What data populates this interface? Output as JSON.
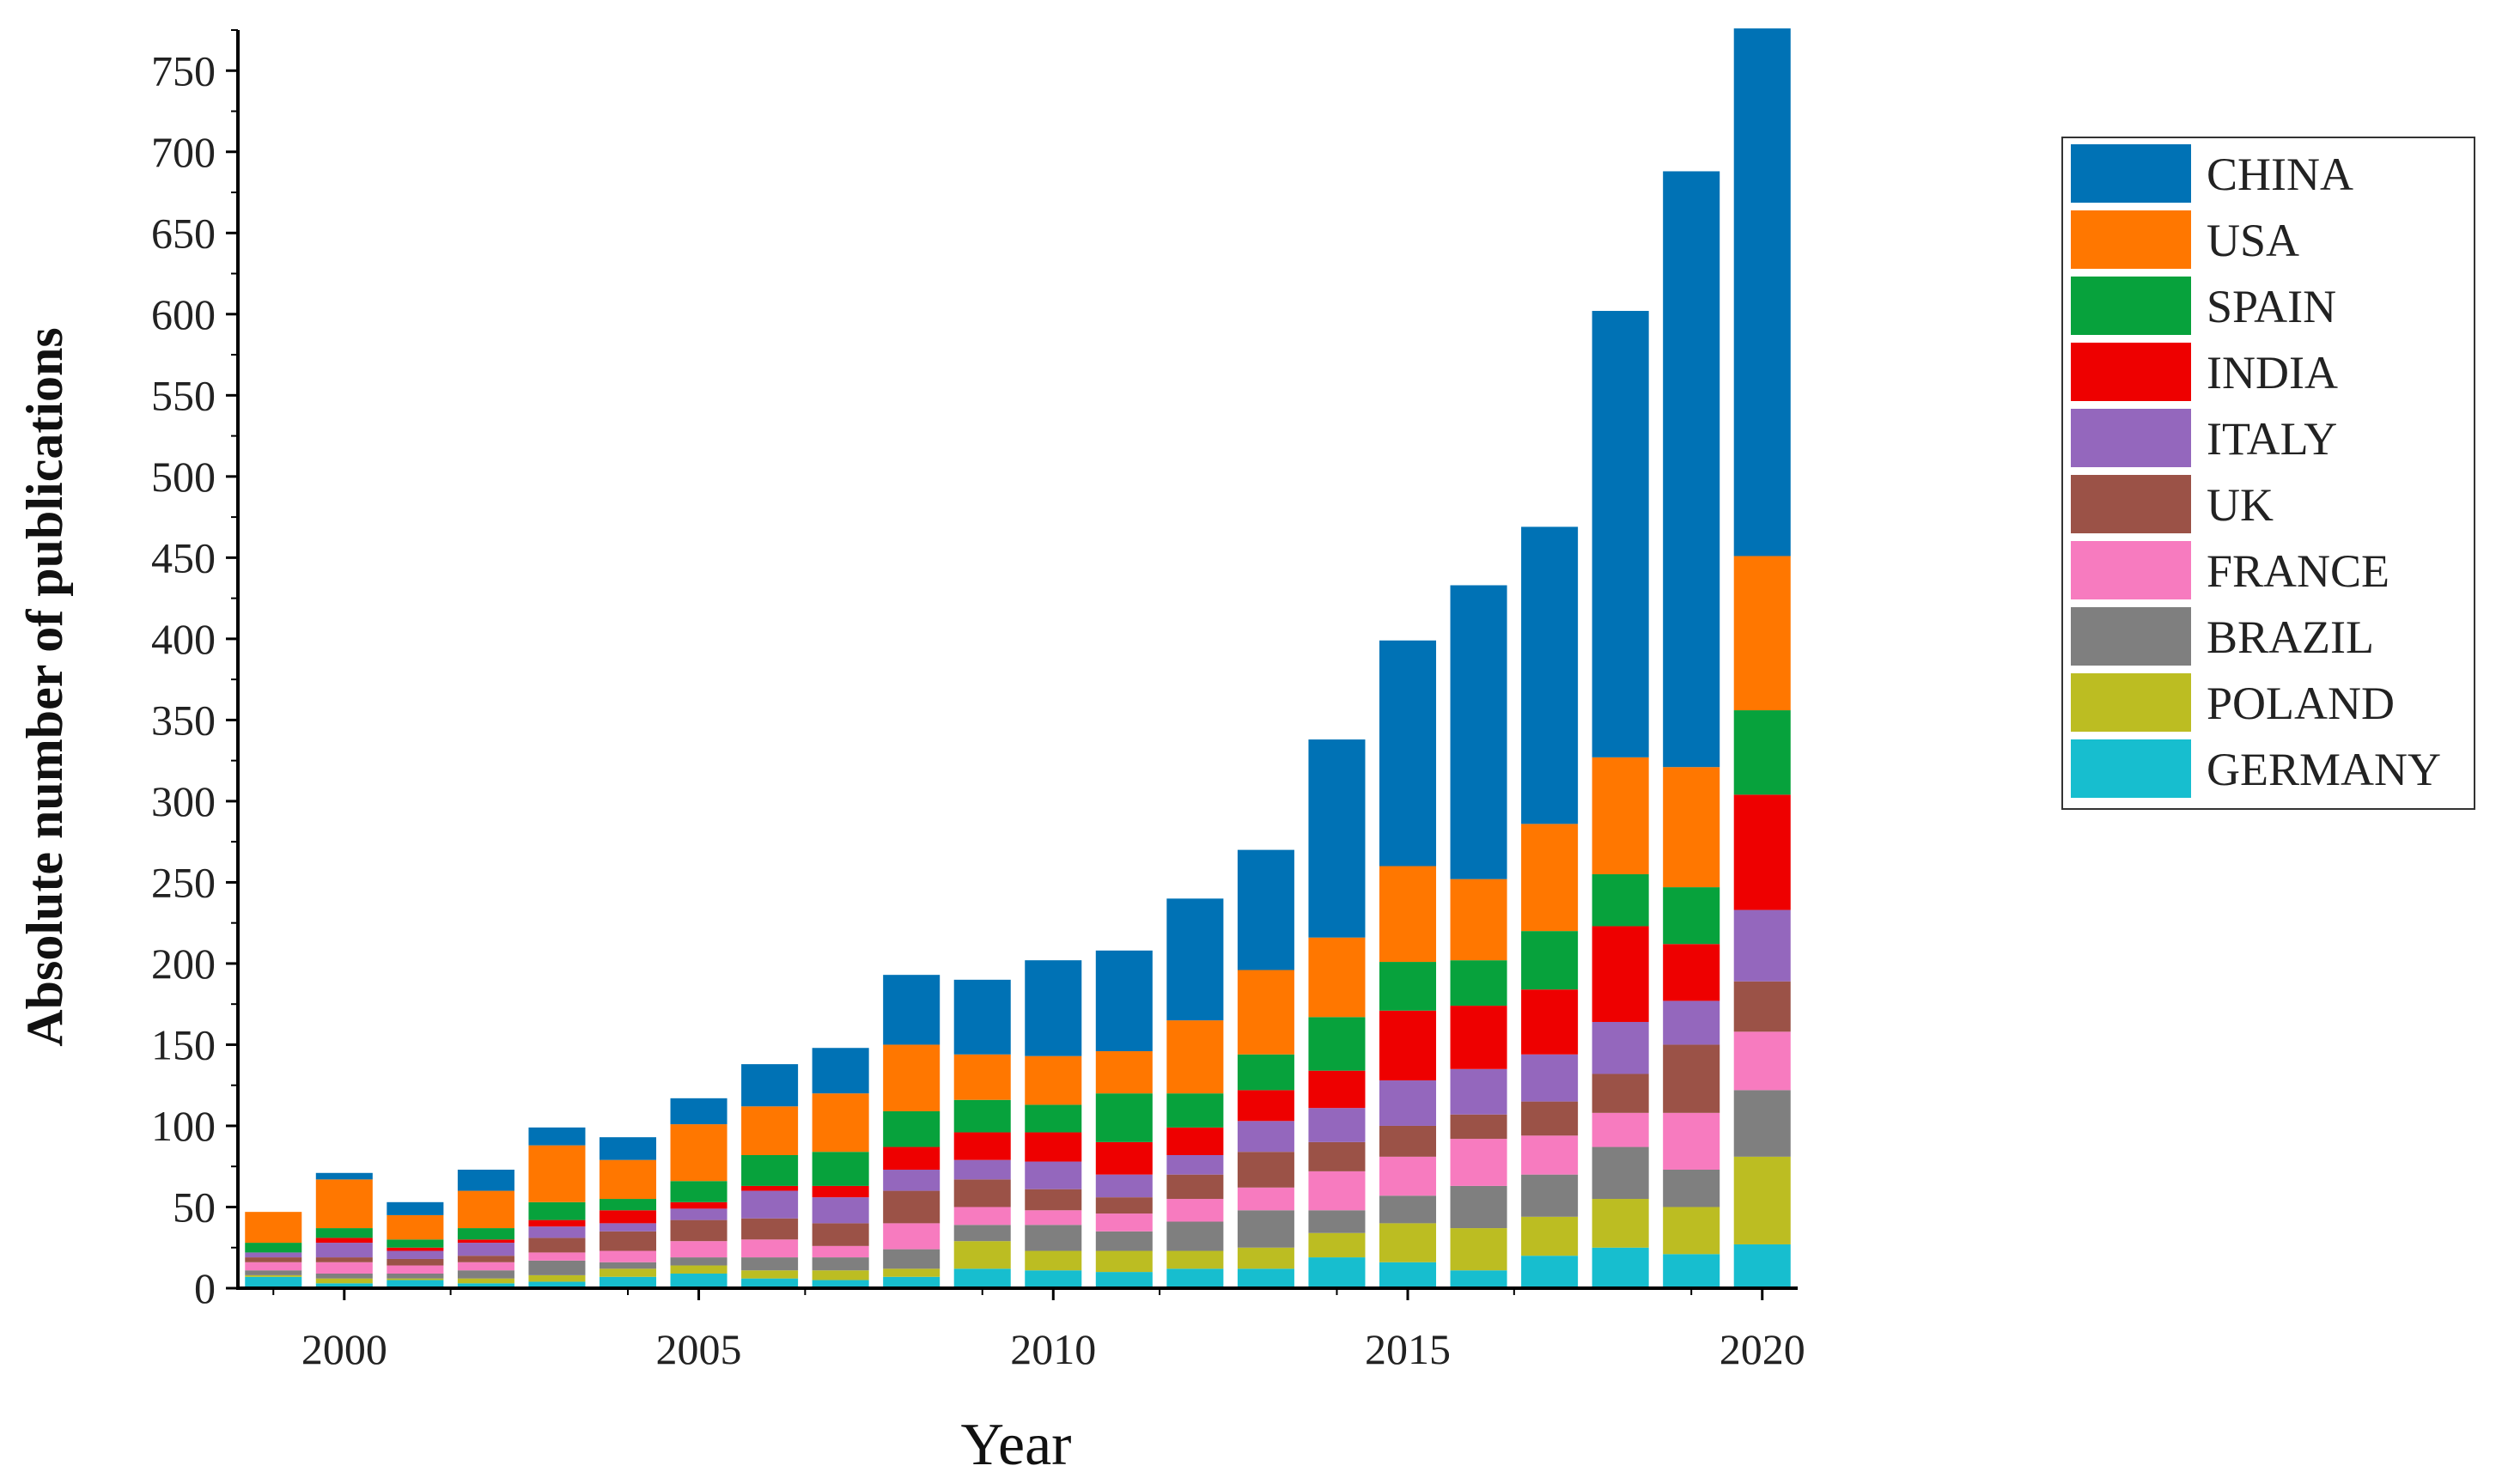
{
  "chart_data": {
    "type": "bar",
    "stacked": true,
    "title": "",
    "xlabel": "Year",
    "ylabel": "Absolute number of publications",
    "ylim": [
      0,
      775
    ],
    "yticks": [
      0,
      50,
      100,
      150,
      200,
      250,
      300,
      350,
      400,
      450,
      500,
      550,
      600,
      650,
      700,
      750
    ],
    "xticks": [
      2000,
      2005,
      2010,
      2015,
      2020
    ],
    "xlim": [
      1998.5,
      2020.5
    ],
    "categories": [
      1999,
      2000,
      2001,
      2002,
      2003,
      2004,
      2005,
      2006,
      2007,
      2008,
      2009,
      2010,
      2011,
      2012,
      2013,
      2014,
      2015,
      2016,
      2017,
      2018,
      2019,
      2020
    ],
    "legend_position": "right",
    "series": [
      {
        "name": "GERMANY",
        "color": "#17becf",
        "values": [
          7,
          3,
          5,
          3,
          4,
          7,
          9,
          6,
          5,
          7,
          12,
          11,
          10,
          12,
          12,
          19,
          16,
          11,
          20,
          25,
          21,
          27
        ]
      },
      {
        "name": "POLAND",
        "color": "#bcbd22",
        "values": [
          1,
          3,
          1,
          3,
          4,
          5,
          5,
          5,
          6,
          5,
          17,
          12,
          13,
          11,
          13,
          15,
          24,
          26,
          24,
          30,
          29,
          54
        ]
      },
      {
        "name": "BRAZIL",
        "color": "#7f7f7f",
        "values": [
          3,
          3,
          3,
          5,
          9,
          4,
          5,
          8,
          8,
          12,
          10,
          16,
          12,
          18,
          23,
          14,
          17,
          26,
          26,
          32,
          23,
          41
        ]
      },
      {
        "name": "FRANCE",
        "color": "#f77bbf",
        "values": [
          5,
          7,
          5,
          5,
          5,
          7,
          10,
          11,
          7,
          16,
          11,
          9,
          11,
          14,
          14,
          24,
          24,
          29,
          24,
          21,
          35,
          36
        ]
      },
      {
        "name": "UK",
        "color": "#9b5247",
        "values": [
          3,
          3,
          4,
          4,
          9,
          12,
          13,
          13,
          14,
          20,
          17,
          13,
          10,
          15,
          22,
          18,
          19,
          15,
          21,
          24,
          42,
          31
        ]
      },
      {
        "name": "ITALY",
        "color": "#9467bd",
        "values": [
          3,
          9,
          5,
          8,
          7,
          5,
          7,
          17,
          16,
          13,
          12,
          17,
          14,
          12,
          19,
          21,
          28,
          28,
          29,
          32,
          27,
          44
        ]
      },
      {
        "name": "INDIA",
        "color": "#ee0000",
        "values": [
          0,
          3,
          2,
          2,
          4,
          8,
          4,
          3,
          7,
          14,
          17,
          18,
          20,
          17,
          19,
          23,
          43,
          39,
          40,
          59,
          35,
          71
        ]
      },
      {
        "name": "SPAIN",
        "color": "#07a23c",
        "values": [
          6,
          6,
          5,
          7,
          11,
          7,
          13,
          19,
          21,
          22,
          20,
          17,
          30,
          21,
          22,
          33,
          30,
          28,
          36,
          32,
          35,
          52
        ]
      },
      {
        "name": "USA",
        "color": "#ff7700",
        "values": [
          19,
          30,
          15,
          23,
          35,
          24,
          35,
          30,
          36,
          41,
          28,
          30,
          26,
          45,
          52,
          49,
          59,
          50,
          66,
          72,
          74,
          95
        ]
      },
      {
        "name": "CHINA",
        "color": "#0072b5",
        "values": [
          0,
          4,
          8,
          13,
          11,
          14,
          16,
          26,
          28,
          43,
          46,
          59,
          62,
          75,
          74,
          122,
          139,
          181,
          183,
          275,
          367,
          325
        ]
      }
    ]
  }
}
